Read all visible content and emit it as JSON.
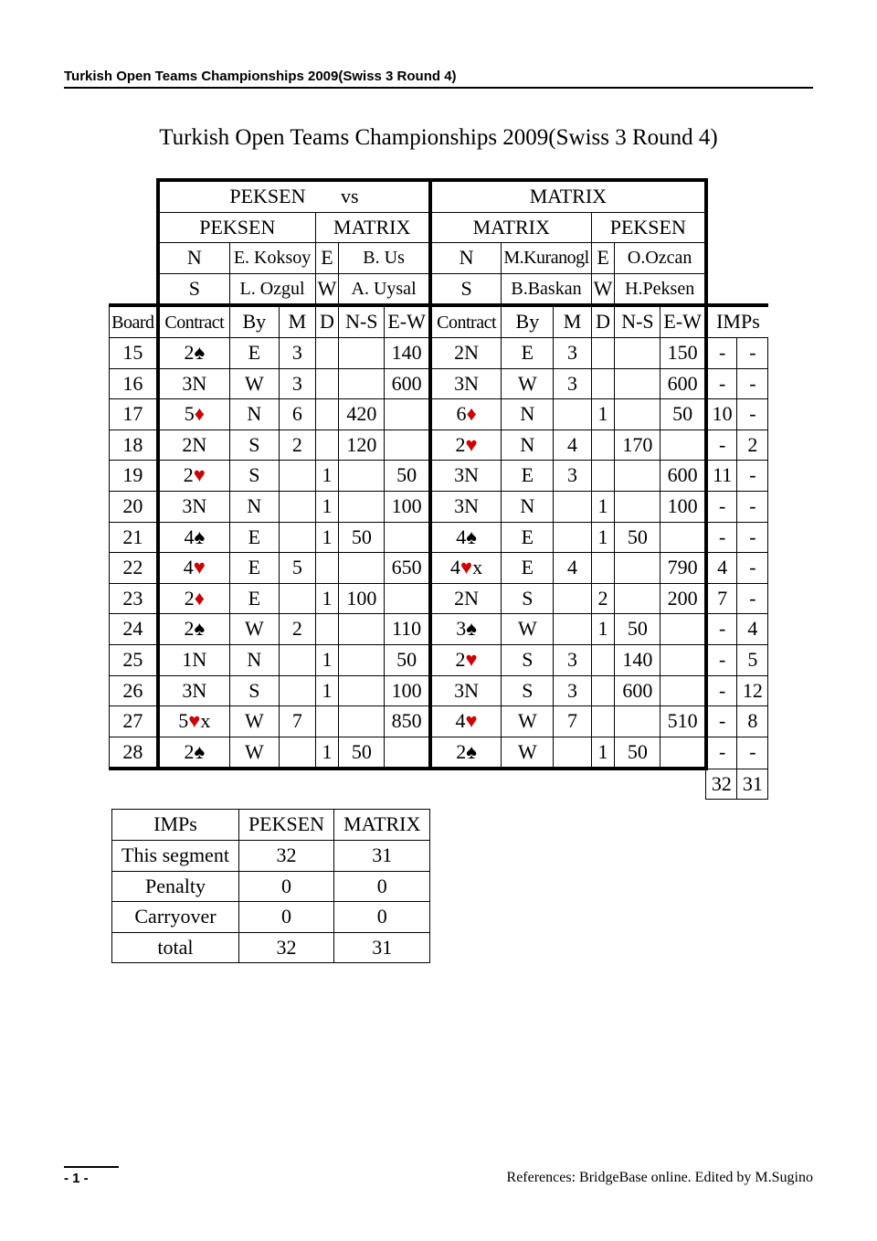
{
  "header": "Turkish Open Teams Championships 2009(Swiss 3 Round 4)",
  "title": "Turkish Open Teams Championships 2009(Swiss 3 Round 4)",
  "teams": {
    "left": "PEKSEN",
    "vs": "vs",
    "right": "MATRIX"
  },
  "room1": {
    "ns_team": "PEKSEN",
    "ew_team": "MATRIX",
    "N": "E. Koksoy",
    "E": "B. Us",
    "S": "L. Ozgul",
    "W": "A. Uysal"
  },
  "room2": {
    "ns_team": "MATRIX",
    "ew_team": "PEKSEN",
    "N": "M.Kuranogl",
    "E": "O.Ozcan",
    "S": "B.Baskan",
    "W": "H.Peksen"
  },
  "cols": {
    "board": "Board",
    "contract": "Contract",
    "by": "By",
    "m": "M",
    "d": "D",
    "ns": "N-S",
    "ew": "E-W",
    "imps": "IMPs"
  },
  "pos": {
    "N": "N",
    "E": "E",
    "S": "S",
    "W": "W"
  },
  "rows": [
    {
      "board": "15",
      "c1": {
        "n": "2",
        "s": "s",
        "x": ""
      },
      "by1": "E",
      "m1": "3",
      "d1": "",
      "ns1": "",
      "ew1": "140",
      "c2": {
        "n": "2",
        "s": "N",
        "x": ""
      },
      "by2": "E",
      "m2": "3",
      "d2": "",
      "ns2": "",
      "ew2": "150",
      "i1": "-",
      "i2": "-"
    },
    {
      "board": "16",
      "c1": {
        "n": "3",
        "s": "N",
        "x": ""
      },
      "by1": "W",
      "m1": "3",
      "d1": "",
      "ns1": "",
      "ew1": "600",
      "c2": {
        "n": "3",
        "s": "N",
        "x": ""
      },
      "by2": "W",
      "m2": "3",
      "d2": "",
      "ns2": "",
      "ew2": "600",
      "i1": "-",
      "i2": "-"
    },
    {
      "board": "17",
      "c1": {
        "n": "5",
        "s": "d",
        "x": ""
      },
      "by1": "N",
      "m1": "6",
      "d1": "",
      "ns1": "420",
      "ew1": "",
      "c2": {
        "n": "6",
        "s": "d",
        "x": ""
      },
      "by2": "N",
      "m2": "",
      "d2": "1",
      "ns2": "",
      "ew2": "50",
      "i1": "10",
      "i2": "-"
    },
    {
      "board": "18",
      "c1": {
        "n": "2",
        "s": "N",
        "x": ""
      },
      "by1": "S",
      "m1": "2",
      "d1": "",
      "ns1": "120",
      "ew1": "",
      "c2": {
        "n": "2",
        "s": "h",
        "x": ""
      },
      "by2": "N",
      "m2": "4",
      "d2": "",
      "ns2": "170",
      "ew2": "",
      "i1": "-",
      "i2": "2"
    },
    {
      "board": "19",
      "c1": {
        "n": "2",
        "s": "h",
        "x": ""
      },
      "by1": "S",
      "m1": "",
      "d1": "1",
      "ns1": "",
      "ew1": "50",
      "c2": {
        "n": "3",
        "s": "N",
        "x": ""
      },
      "by2": "E",
      "m2": "3",
      "d2": "",
      "ns2": "",
      "ew2": "600",
      "i1": "11",
      "i2": "-"
    },
    {
      "board": "20",
      "c1": {
        "n": "3",
        "s": "N",
        "x": ""
      },
      "by1": "N",
      "m1": "",
      "d1": "1",
      "ns1": "",
      "ew1": "100",
      "c2": {
        "n": "3",
        "s": "N",
        "x": ""
      },
      "by2": "N",
      "m2": "",
      "d2": "1",
      "ns2": "",
      "ew2": "100",
      "i1": "-",
      "i2": "-"
    },
    {
      "board": "21",
      "c1": {
        "n": "4",
        "s": "s",
        "x": ""
      },
      "by1": "E",
      "m1": "",
      "d1": "1",
      "ns1": "50",
      "ew1": "",
      "c2": {
        "n": "4",
        "s": "s",
        "x": ""
      },
      "by2": "E",
      "m2": "",
      "d2": "1",
      "ns2": "50",
      "ew2": "",
      "i1": "-",
      "i2": "-"
    },
    {
      "board": "22",
      "c1": {
        "n": "4",
        "s": "h",
        "x": ""
      },
      "by1": "E",
      "m1": "5",
      "d1": "",
      "ns1": "",
      "ew1": "650",
      "c2": {
        "n": "4",
        "s": "h",
        "x": "x"
      },
      "by2": "E",
      "m2": "4",
      "d2": "",
      "ns2": "",
      "ew2": "790",
      "i1": "4",
      "i2": "-"
    },
    {
      "board": "23",
      "c1": {
        "n": "2",
        "s": "d",
        "x": ""
      },
      "by1": "E",
      "m1": "",
      "d1": "1",
      "ns1": "100",
      "ew1": "",
      "c2": {
        "n": "2",
        "s": "N",
        "x": ""
      },
      "by2": "S",
      "m2": "",
      "d2": "2",
      "ns2": "",
      "ew2": "200",
      "i1": "7",
      "i2": "-"
    },
    {
      "board": "24",
      "c1": {
        "n": "2",
        "s": "s",
        "x": ""
      },
      "by1": "W",
      "m1": "2",
      "d1": "",
      "ns1": "",
      "ew1": "110",
      "c2": {
        "n": "3",
        "s": "s",
        "x": ""
      },
      "by2": "W",
      "m2": "",
      "d2": "1",
      "ns2": "50",
      "ew2": "",
      "i1": "-",
      "i2": "4"
    },
    {
      "board": "25",
      "c1": {
        "n": "1",
        "s": "N",
        "x": ""
      },
      "by1": "N",
      "m1": "",
      "d1": "1",
      "ns1": "",
      "ew1": "50",
      "c2": {
        "n": "2",
        "s": "h",
        "x": ""
      },
      "by2": "S",
      "m2": "3",
      "d2": "",
      "ns2": "140",
      "ew2": "",
      "i1": "-",
      "i2": "5"
    },
    {
      "board": "26",
      "c1": {
        "n": "3",
        "s": "N",
        "x": ""
      },
      "by1": "S",
      "m1": "",
      "d1": "1",
      "ns1": "",
      "ew1": "100",
      "c2": {
        "n": "3",
        "s": "N",
        "x": ""
      },
      "by2": "S",
      "m2": "3",
      "d2": "",
      "ns2": "600",
      "ew2": "",
      "i1": "-",
      "i2": "12"
    },
    {
      "board": "27",
      "c1": {
        "n": "5",
        "s": "h",
        "x": "x"
      },
      "by1": "W",
      "m1": "7",
      "d1": "",
      "ns1": "",
      "ew1": "850",
      "c2": {
        "n": "4",
        "s": "h",
        "x": ""
      },
      "by2": "W",
      "m2": "7",
      "d2": "",
      "ns2": "",
      "ew2": "510",
      "i1": "-",
      "i2": "8"
    },
    {
      "board": "28",
      "c1": {
        "n": "2",
        "s": "s",
        "x": ""
      },
      "by1": "W",
      "m1": "",
      "d1": "1",
      "ns1": "50",
      "ew1": "",
      "c2": {
        "n": "2",
        "s": "s",
        "x": ""
      },
      "by2": "W",
      "m2": "",
      "d2": "1",
      "ns2": "50",
      "ew2": "",
      "i1": "-",
      "i2": "-"
    }
  ],
  "totals": {
    "i1": "32",
    "i2": "31"
  },
  "summary": {
    "header": {
      "imps": "IMPs",
      "a": "PEKSEN",
      "b": "MATRIX"
    },
    "rows": [
      {
        "label": "This segment",
        "a": "32",
        "b": "31"
      },
      {
        "label": "Penalty",
        "a": "0",
        "b": "0"
      },
      {
        "label": "Carryover",
        "a": "0",
        "b": "0"
      },
      {
        "label": "total",
        "a": "32",
        "b": "31"
      }
    ]
  },
  "footer": {
    "page": "- 1 -",
    "refs": "References: BridgeBase online.   Edited by M.Sugino"
  }
}
